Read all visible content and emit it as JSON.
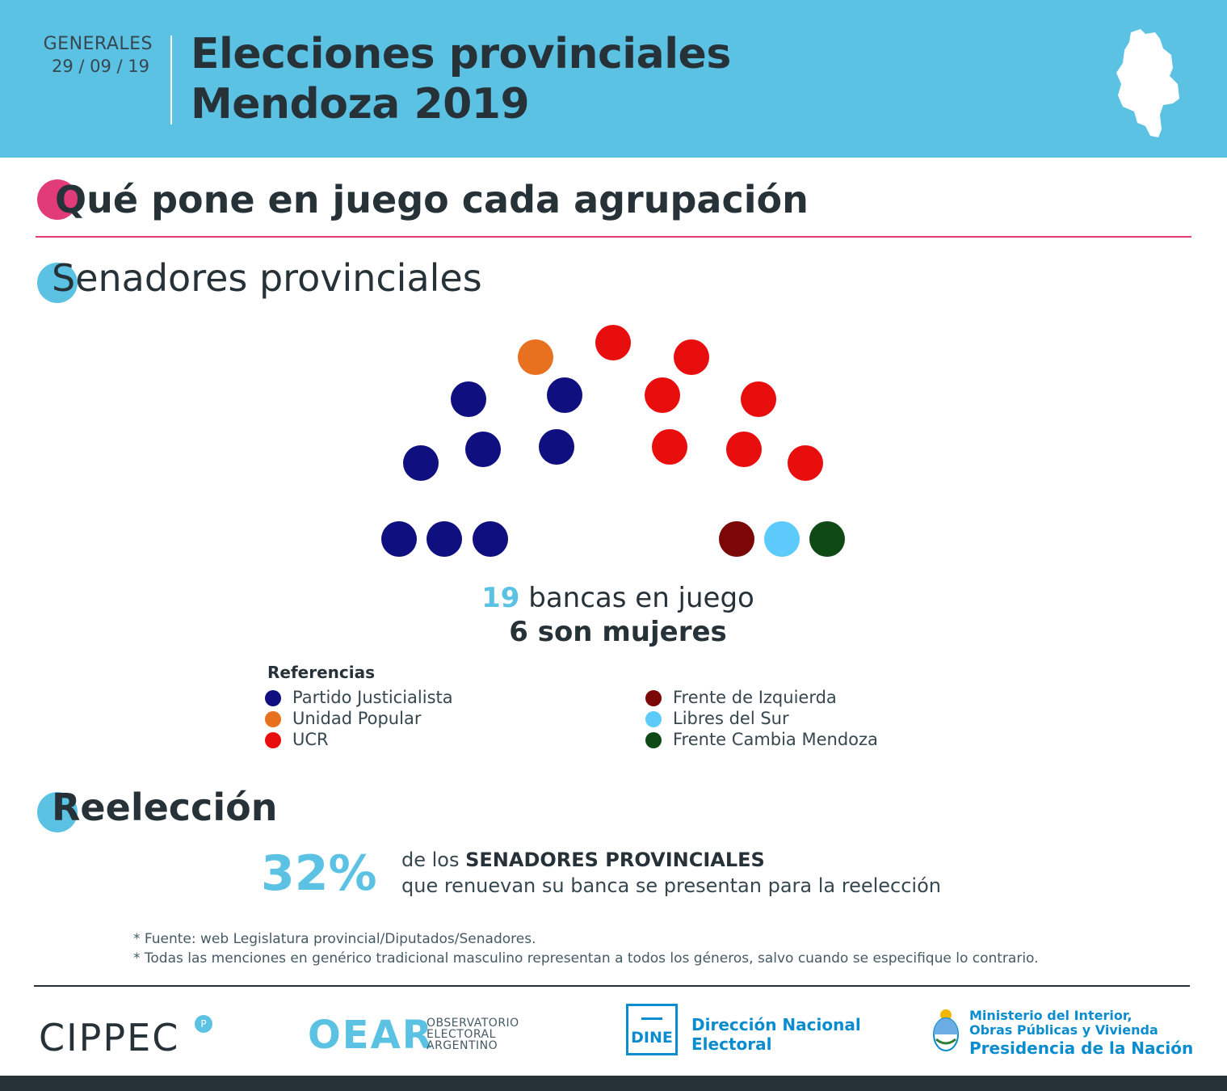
{
  "header": {
    "date_label": "GENERALES",
    "date_value": "29 / 09 / 19",
    "title_line1": "Elecciones provinciales",
    "title_line2": "Mendoza 2019",
    "map_icon": "mendoza-map-icon"
  },
  "section_main": {
    "title": "Qué pone en juego cada agrupación"
  },
  "section_senators": {
    "title_initial": "S",
    "title_rest": "enadores provinciales"
  },
  "chart_data": {
    "type": "parliament",
    "total_seats": 19,
    "parties": [
      {
        "name": "Partido Justicialista",
        "color": "#0f0f80",
        "seats": 8
      },
      {
        "name": "Unidad Popular",
        "color": "#e7711e",
        "seats": 1
      },
      {
        "name": "UCR",
        "color": "#e80e0e",
        "seats": 7
      },
      {
        "name": "Frente de Izquierda",
        "color": "#7b0707",
        "seats": 1
      },
      {
        "name": "Libres del Sur",
        "color": "#5ccbfb",
        "seats": 1
      },
      {
        "name": "Frente Cambia Mendoza",
        "color": "#0f4a16",
        "seats": 1
      }
    ]
  },
  "summary": {
    "seats_number": "19",
    "seats_text": "bancas en juego",
    "women_text": "6 son mujeres"
  },
  "legend": {
    "title": "Referencias",
    "items": [
      {
        "label": "Partido Justicialista",
        "color": "#0f0f80"
      },
      {
        "label": "Unidad Popular",
        "color": "#e7711e"
      },
      {
        "label": "UCR",
        "color": "#e80e0e"
      },
      {
        "label": "Frente de Izquierda",
        "color": "#7b0707"
      },
      {
        "label": "Libres del Sur",
        "color": "#5ccbfb"
      },
      {
        "label": "Frente Cambia Mendoza",
        "color": "#0f4a16"
      }
    ]
  },
  "section_reelection": {
    "title_initial": "R",
    "title_rest": "eelección",
    "percentage": "32%",
    "text_prefix": "de los",
    "text_bold": "SENADORES PROVINCIALES",
    "text_line2": "que renuevan su banca se presentan para la reelección"
  },
  "notes": {
    "source": "* Fuente: web Legislatura provincial/Diputados/Senadores.",
    "gender": "* Todas las menciones en genérico tradicional masculino representan a todos los géneros, salvo cuando se especifique lo contrario."
  },
  "footer": {
    "cippec": "CIPPEC",
    "cippec_badge": "P",
    "oear_mark": "OEAR",
    "oear_lines": [
      "OBSERVATORIO",
      "ELECTORAL",
      "ARGENTINO"
    ],
    "dine_box": "DINE",
    "dine_lines": [
      "Dirección Nacional",
      "Electoral"
    ],
    "ministry_lines": [
      "Ministerio del Interior,",
      "Obras Públicas y Vivienda",
      "Presidencia de la Nación"
    ]
  },
  "colors": {
    "header_bg": "#5bc2e3",
    "accent_pink": "#e23b7a",
    "accent_blue": "#5bc2e3",
    "text_dark": "#263238",
    "gov_blue": "#0a8ccf"
  }
}
